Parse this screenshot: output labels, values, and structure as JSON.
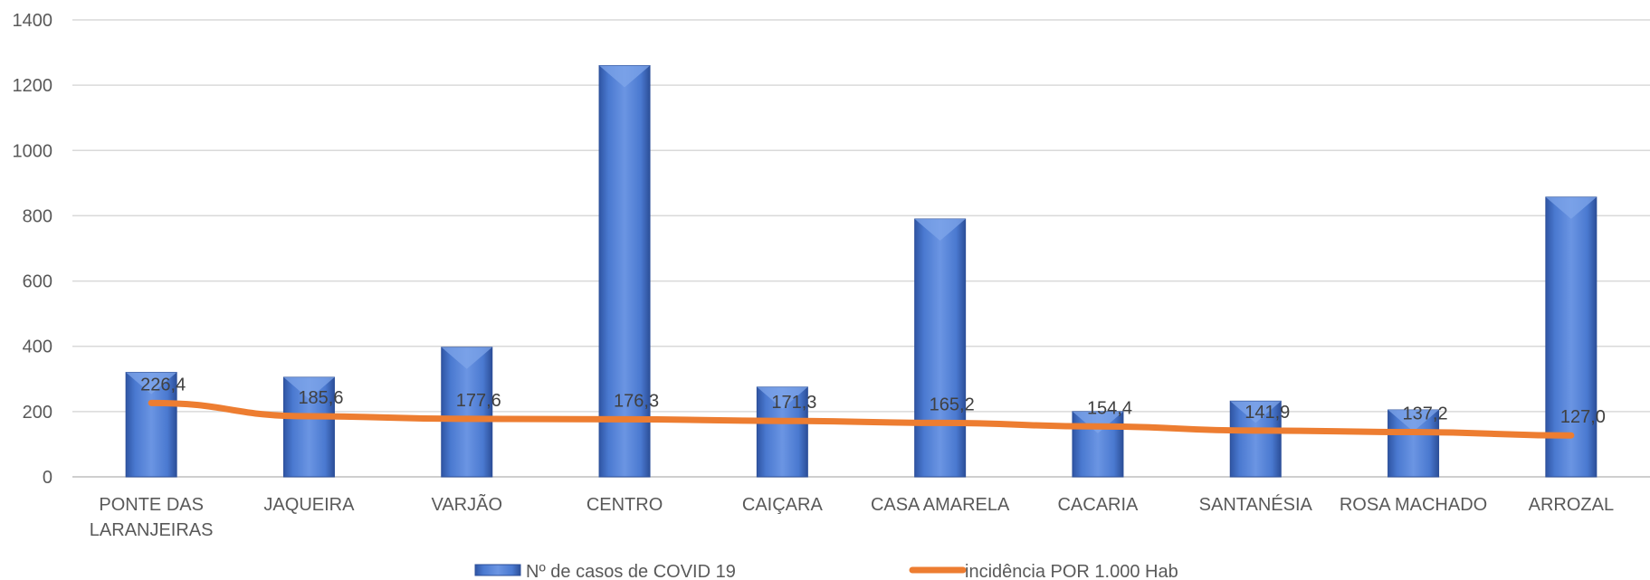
{
  "chart_data": {
    "type": "bar",
    "categories": [
      [
        "PONTE DAS",
        "LARANJEIRAS"
      ],
      [
        "JAQUEIRA"
      ],
      [
        "VARJÃO"
      ],
      [
        "CENTRO"
      ],
      [
        "CAIÇARA"
      ],
      [
        "CASA AMARELA"
      ],
      [
        "CACARIA"
      ],
      [
        "SANTANÉSIA"
      ],
      [
        "ROSA MACHADO"
      ],
      [
        "ARROZAL"
      ]
    ],
    "ylim": [
      0,
      1400
    ],
    "yticks": [
      0,
      200,
      400,
      600,
      800,
      1000,
      1200,
      1400
    ],
    "grid": true,
    "legend_position": "bottom",
    "series": [
      {
        "name": "Nº de casos de COVID 19",
        "type": "bar",
        "color": "#4472C4",
        "values": [
          320,
          305,
          397,
          1260,
          275,
          790,
          200,
          232,
          205,
          857
        ]
      },
      {
        "name": "incidência POR 1.000 Hab",
        "type": "line",
        "color": "#ED7D31",
        "values": [
          226.4,
          185.6,
          177.6,
          176.3,
          171.3,
          165.2,
          154.4,
          141.9,
          137.2,
          127.0
        ],
        "data_labels": [
          "226,4",
          "185,6",
          "177,6",
          "176,3",
          "171,3",
          "165,2",
          "154,4",
          "141,9",
          "137,2",
          "127,0"
        ]
      }
    ]
  }
}
